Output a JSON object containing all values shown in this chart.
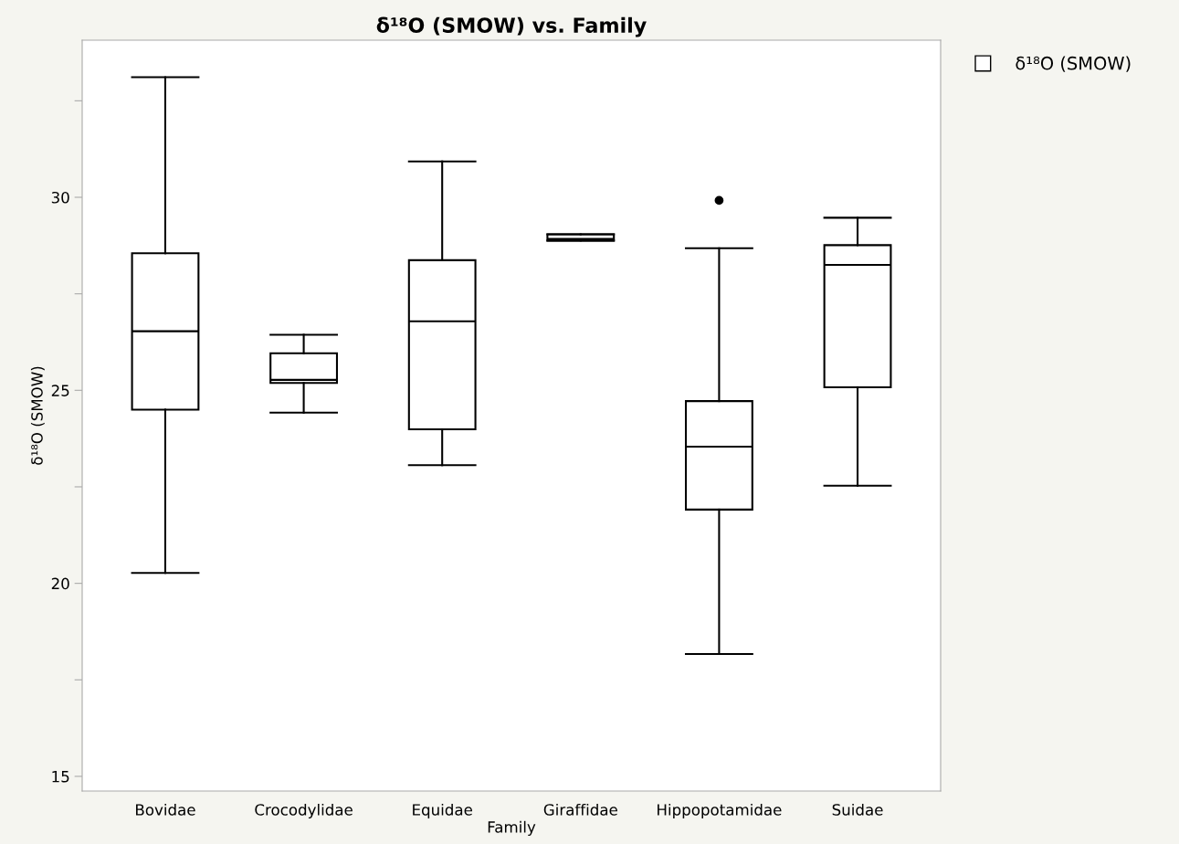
{
  "chart_data": {
    "type": "box",
    "title": "δ¹⁸O (SMOW) vs. Family",
    "xlabel": "Family",
    "ylabel": "δ¹⁸O (SMOW)",
    "categories": [
      "Bovidae",
      "Crocodylidae",
      "Equidae",
      "Giraffidae",
      "Hippopotamidae",
      "Suidae"
    ],
    "series": [
      {
        "name": "δ¹⁸O (SMOW)",
        "color": "#000000",
        "boxes": [
          {
            "low": 20.27,
            "q1": 24.5,
            "median": 26.53,
            "q3": 28.55,
            "high": 33.11
          },
          {
            "low": 24.42,
            "q1": 25.19,
            "median": 25.27,
            "q3": 25.96,
            "high": 26.44
          },
          {
            "low": 23.06,
            "q1": 23.99,
            "median": 26.79,
            "q3": 28.37,
            "high": 30.93
          },
          {
            "low": 28.88,
            "q1": 28.88,
            "median": 28.92,
            "q3": 29.04,
            "high": 29.04
          },
          {
            "low": 18.17,
            "q1": 21.91,
            "median": 23.54,
            "q3": 24.72,
            "high": 28.68,
            "outliers": [
              29.92
            ]
          },
          {
            "low": 22.53,
            "q1": 25.08,
            "median": 28.25,
            "q3": 28.76,
            "high": 29.47
          }
        ]
      }
    ],
    "ylim": [
      14.62,
      34.07
    ],
    "yticks": [
      15,
      {
        "value": 17.5,
        "label": null
      },
      20,
      {
        "value": 22.5,
        "label": null
      },
      25,
      {
        "value": 27.5,
        "label": null
      },
      30,
      {
        "value": 32.5,
        "label": null
      }
    ],
    "grid": false,
    "legend": "top right"
  }
}
